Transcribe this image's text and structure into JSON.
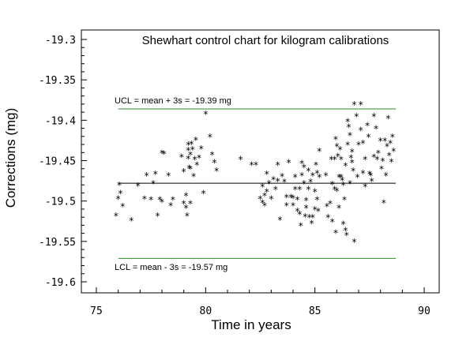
{
  "chart_data": {
    "type": "scatter",
    "title": "Shewhart control chart for kilogram calibrations",
    "xlabel": "Time in years",
    "ylabel": "Corrections (mg)",
    "xlim": [
      75,
      90
    ],
    "ylim": [
      -19.6,
      -19.3
    ],
    "xticks": [
      "75",
      "80",
      "85",
      "90"
    ],
    "yticks": [
      "-19.3",
      "-19.35",
      "-19.4",
      "-19.45",
      "-19.5",
      "-19.55",
      "-19.6"
    ],
    "marker": "*",
    "ucl": {
      "value": -19.386,
      "label": "UCL = mean + 3s = -19.39 mg",
      "color": "#2e8b2e"
    },
    "lcl": {
      "value": -19.571,
      "label": "LCL = mean - 3s = -19.57 mg",
      "color": "#2e8b2e"
    },
    "mean": {
      "value": -19.478,
      "color": "#000000"
    },
    "points": [
      [
        75.9,
        -19.518
      ],
      [
        76.0,
        -19.497
      ],
      [
        76.05,
        -19.48
      ],
      [
        76.1,
        -19.49
      ],
      [
        76.2,
        -19.506
      ],
      [
        76.6,
        -19.524
      ],
      [
        76.9,
        -19.481
      ],
      [
        77.2,
        -19.497
      ],
      [
        77.3,
        -19.468
      ],
      [
        77.5,
        -19.498
      ],
      [
        77.6,
        -19.478
      ],
      [
        77.7,
        -19.466
      ],
      [
        77.8,
        -19.518
      ],
      [
        77.9,
        -19.498
      ],
      [
        78.0,
        -19.501
      ],
      [
        78.0,
        -19.44
      ],
      [
        78.1,
        -19.441
      ],
      [
        78.3,
        -19.468
      ],
      [
        78.4,
        -19.505
      ],
      [
        78.5,
        -19.498
      ],
      [
        78.9,
        -19.445
      ],
      [
        79.0,
        -19.463
      ],
      [
        79.0,
        -19.503
      ],
      [
        79.1,
        -19.493
      ],
      [
        79.1,
        -19.508
      ],
      [
        79.15,
        -19.518
      ],
      [
        79.2,
        -19.43
      ],
      [
        79.2,
        -19.437
      ],
      [
        79.2,
        -19.447
      ],
      [
        79.25,
        -19.459
      ],
      [
        79.3,
        -19.442
      ],
      [
        79.3,
        -19.46
      ],
      [
        79.3,
        -19.503
      ],
      [
        79.35,
        -19.429
      ],
      [
        79.4,
        -19.436
      ],
      [
        79.45,
        -19.469
      ],
      [
        79.5,
        -19.448
      ],
      [
        79.55,
        -19.424
      ],
      [
        79.6,
        -19.455
      ],
      [
        79.7,
        -19.446
      ],
      [
        79.8,
        -19.435
      ],
      [
        79.9,
        -19.49
      ],
      [
        80.0,
        -19.392
      ],
      [
        80.2,
        -19.42
      ],
      [
        80.3,
        -19.442
      ],
      [
        80.4,
        -19.452
      ],
      [
        80.5,
        -19.462
      ],
      [
        81.6,
        -19.448
      ],
      [
        82.1,
        -19.455
      ],
      [
        82.3,
        -19.455
      ],
      [
        82.5,
        -19.497
      ],
      [
        82.6,
        -19.482
      ],
      [
        82.6,
        -19.502
      ],
      [
        82.7,
        -19.493
      ],
      [
        82.7,
        -19.505
      ],
      [
        82.8,
        -19.488
      ],
      [
        82.8,
        -19.466
      ],
      [
        82.9,
        -19.478
      ],
      [
        83.0,
        -19.497
      ],
      [
        83.1,
        -19.473
      ],
      [
        83.2,
        -19.485
      ],
      [
        83.3,
        -19.475
      ],
      [
        83.3,
        -19.455
      ],
      [
        83.4,
        -19.523
      ],
      [
        83.5,
        -19.469
      ],
      [
        83.6,
        -19.476
      ],
      [
        83.7,
        -19.505
      ],
      [
        83.7,
        -19.495
      ],
      [
        83.8,
        -19.452
      ],
      [
        83.9,
        -19.495
      ],
      [
        84.0,
        -19.496
      ],
      [
        84.0,
        -19.505
      ],
      [
        84.1,
        -19.485
      ],
      [
        84.1,
        -19.47
      ],
      [
        84.2,
        -19.498
      ],
      [
        84.2,
        -19.512
      ],
      [
        84.3,
        -19.485
      ],
      [
        84.3,
        -19.516
      ],
      [
        84.35,
        -19.53
      ],
      [
        84.4,
        -19.468
      ],
      [
        84.4,
        -19.453
      ],
      [
        84.5,
        -19.458
      ],
      [
        84.5,
        -19.478
      ],
      [
        84.55,
        -19.519
      ],
      [
        84.6,
        -19.508
      ],
      [
        84.6,
        -19.499
      ],
      [
        84.7,
        -19.462
      ],
      [
        84.7,
        -19.485
      ],
      [
        84.75,
        -19.52
      ],
      [
        84.8,
        -19.476
      ],
      [
        84.85,
        -19.527
      ],
      [
        84.9,
        -19.468
      ],
      [
        84.9,
        -19.52
      ],
      [
        85.0,
        -19.488
      ],
      [
        85.0,
        -19.51
      ],
      [
        85.05,
        -19.455
      ],
      [
        85.1,
        -19.465
      ],
      [
        85.1,
        -19.498
      ],
      [
        85.15,
        -19.512
      ],
      [
        85.2,
        -19.47
      ],
      [
        85.2,
        -19.438
      ],
      [
        85.5,
        -19.468
      ],
      [
        85.55,
        -19.506
      ],
      [
        85.6,
        -19.52
      ],
      [
        85.7,
        -19.503
      ],
      [
        85.75,
        -19.448
      ],
      [
        85.8,
        -19.479
      ],
      [
        85.8,
        -19.525
      ],
      [
        85.9,
        -19.448
      ],
      [
        85.9,
        -19.485
      ],
      [
        85.95,
        -19.539
      ],
      [
        85.95,
        -19.423
      ],
      [
        86.0,
        -19.487
      ],
      [
        86.0,
        -19.432
      ],
      [
        86.05,
        -19.444
      ],
      [
        86.1,
        -19.47
      ],
      [
        86.1,
        -19.508
      ],
      [
        86.15,
        -19.436
      ],
      [
        86.2,
        -19.448
      ],
      [
        86.2,
        -19.47
      ],
      [
        86.25,
        -19.474
      ],
      [
        86.3,
        -19.528
      ],
      [
        86.3,
        -19.48
      ],
      [
        86.35,
        -19.498
      ],
      [
        86.4,
        -19.456
      ],
      [
        86.4,
        -19.536
      ],
      [
        86.45,
        -19.542
      ],
      [
        86.5,
        -19.43
      ],
      [
        86.5,
        -19.401
      ],
      [
        86.55,
        -19.408
      ],
      [
        86.6,
        -19.478
      ],
      [
        86.6,
        -19.418
      ],
      [
        86.65,
        -19.446
      ],
      [
        86.7,
        -19.439
      ],
      [
        86.7,
        -19.452
      ],
      [
        86.75,
        -19.462
      ],
      [
        86.8,
        -19.38
      ],
      [
        86.8,
        -19.55
      ],
      [
        86.9,
        -19.395
      ],
      [
        86.95,
        -19.47
      ],
      [
        87.0,
        -19.43
      ],
      [
        87.1,
        -19.38
      ],
      [
        87.1,
        -19.412
      ],
      [
        87.2,
        -19.428
      ],
      [
        87.2,
        -19.465
      ],
      [
        87.3,
        -19.482
      ],
      [
        87.3,
        -19.448
      ],
      [
        87.4,
        -19.406
      ],
      [
        87.45,
        -19.42
      ],
      [
        87.5,
        -19.466
      ],
      [
        87.55,
        -19.468
      ],
      [
        87.6,
        -19.475
      ],
      [
        87.7,
        -19.395
      ],
      [
        87.7,
        -19.445
      ],
      [
        87.8,
        -19.41
      ],
      [
        87.85,
        -19.448
      ],
      [
        87.9,
        -19.44
      ],
      [
        88.0,
        -19.425
      ],
      [
        88.05,
        -19.46
      ],
      [
        88.1,
        -19.45
      ],
      [
        88.15,
        -19.502
      ],
      [
        88.2,
        -19.425
      ],
      [
        88.25,
        -19.468
      ],
      [
        88.3,
        -19.432
      ],
      [
        88.35,
        -19.397
      ],
      [
        88.4,
        -19.443
      ],
      [
        88.45,
        -19.428
      ],
      [
        88.5,
        -19.451
      ],
      [
        88.55,
        -19.42
      ],
      [
        88.6,
        -19.438
      ]
    ]
  }
}
